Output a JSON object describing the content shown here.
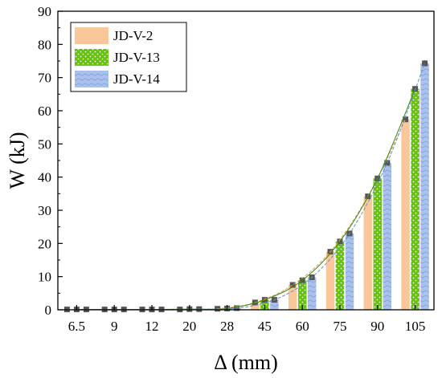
{
  "chart_data": {
    "type": "bar",
    "xlabel": "Δ (mm)",
    "ylabel": "W (kJ)",
    "ylim": [
      0,
      90
    ],
    "yticks": [
      0,
      10,
      20,
      30,
      40,
      50,
      60,
      70,
      80,
      90
    ],
    "categories": [
      "6.5",
      "9",
      "12",
      "20",
      "28",
      "45",
      "60",
      "75",
      "90",
      "105"
    ],
    "legend_position": "top-left",
    "series": [
      {
        "name": "JD-V-2",
        "color": "#f9c79a",
        "pattern": "solid",
        "values": [
          0.1,
          0.1,
          0.1,
          0.1,
          0.3,
          2.2,
          7.5,
          17.5,
          34.2,
          57.4
        ]
      },
      {
        "name": "JD-V-13",
        "color": "#66c010",
        "pattern": "dots",
        "values": [
          0.1,
          0.1,
          0.1,
          0.2,
          0.4,
          3.0,
          8.9,
          20.6,
          39.6,
          66.6
        ]
      },
      {
        "name": "JD-V-14",
        "color": "#a9c1ec",
        "pattern": "waves",
        "values": [
          0.1,
          0.1,
          0.1,
          0.2,
          0.5,
          3.0,
          9.8,
          23.0,
          44.3,
          74.3
        ]
      }
    ],
    "trendlines": true,
    "error_bars": true
  }
}
